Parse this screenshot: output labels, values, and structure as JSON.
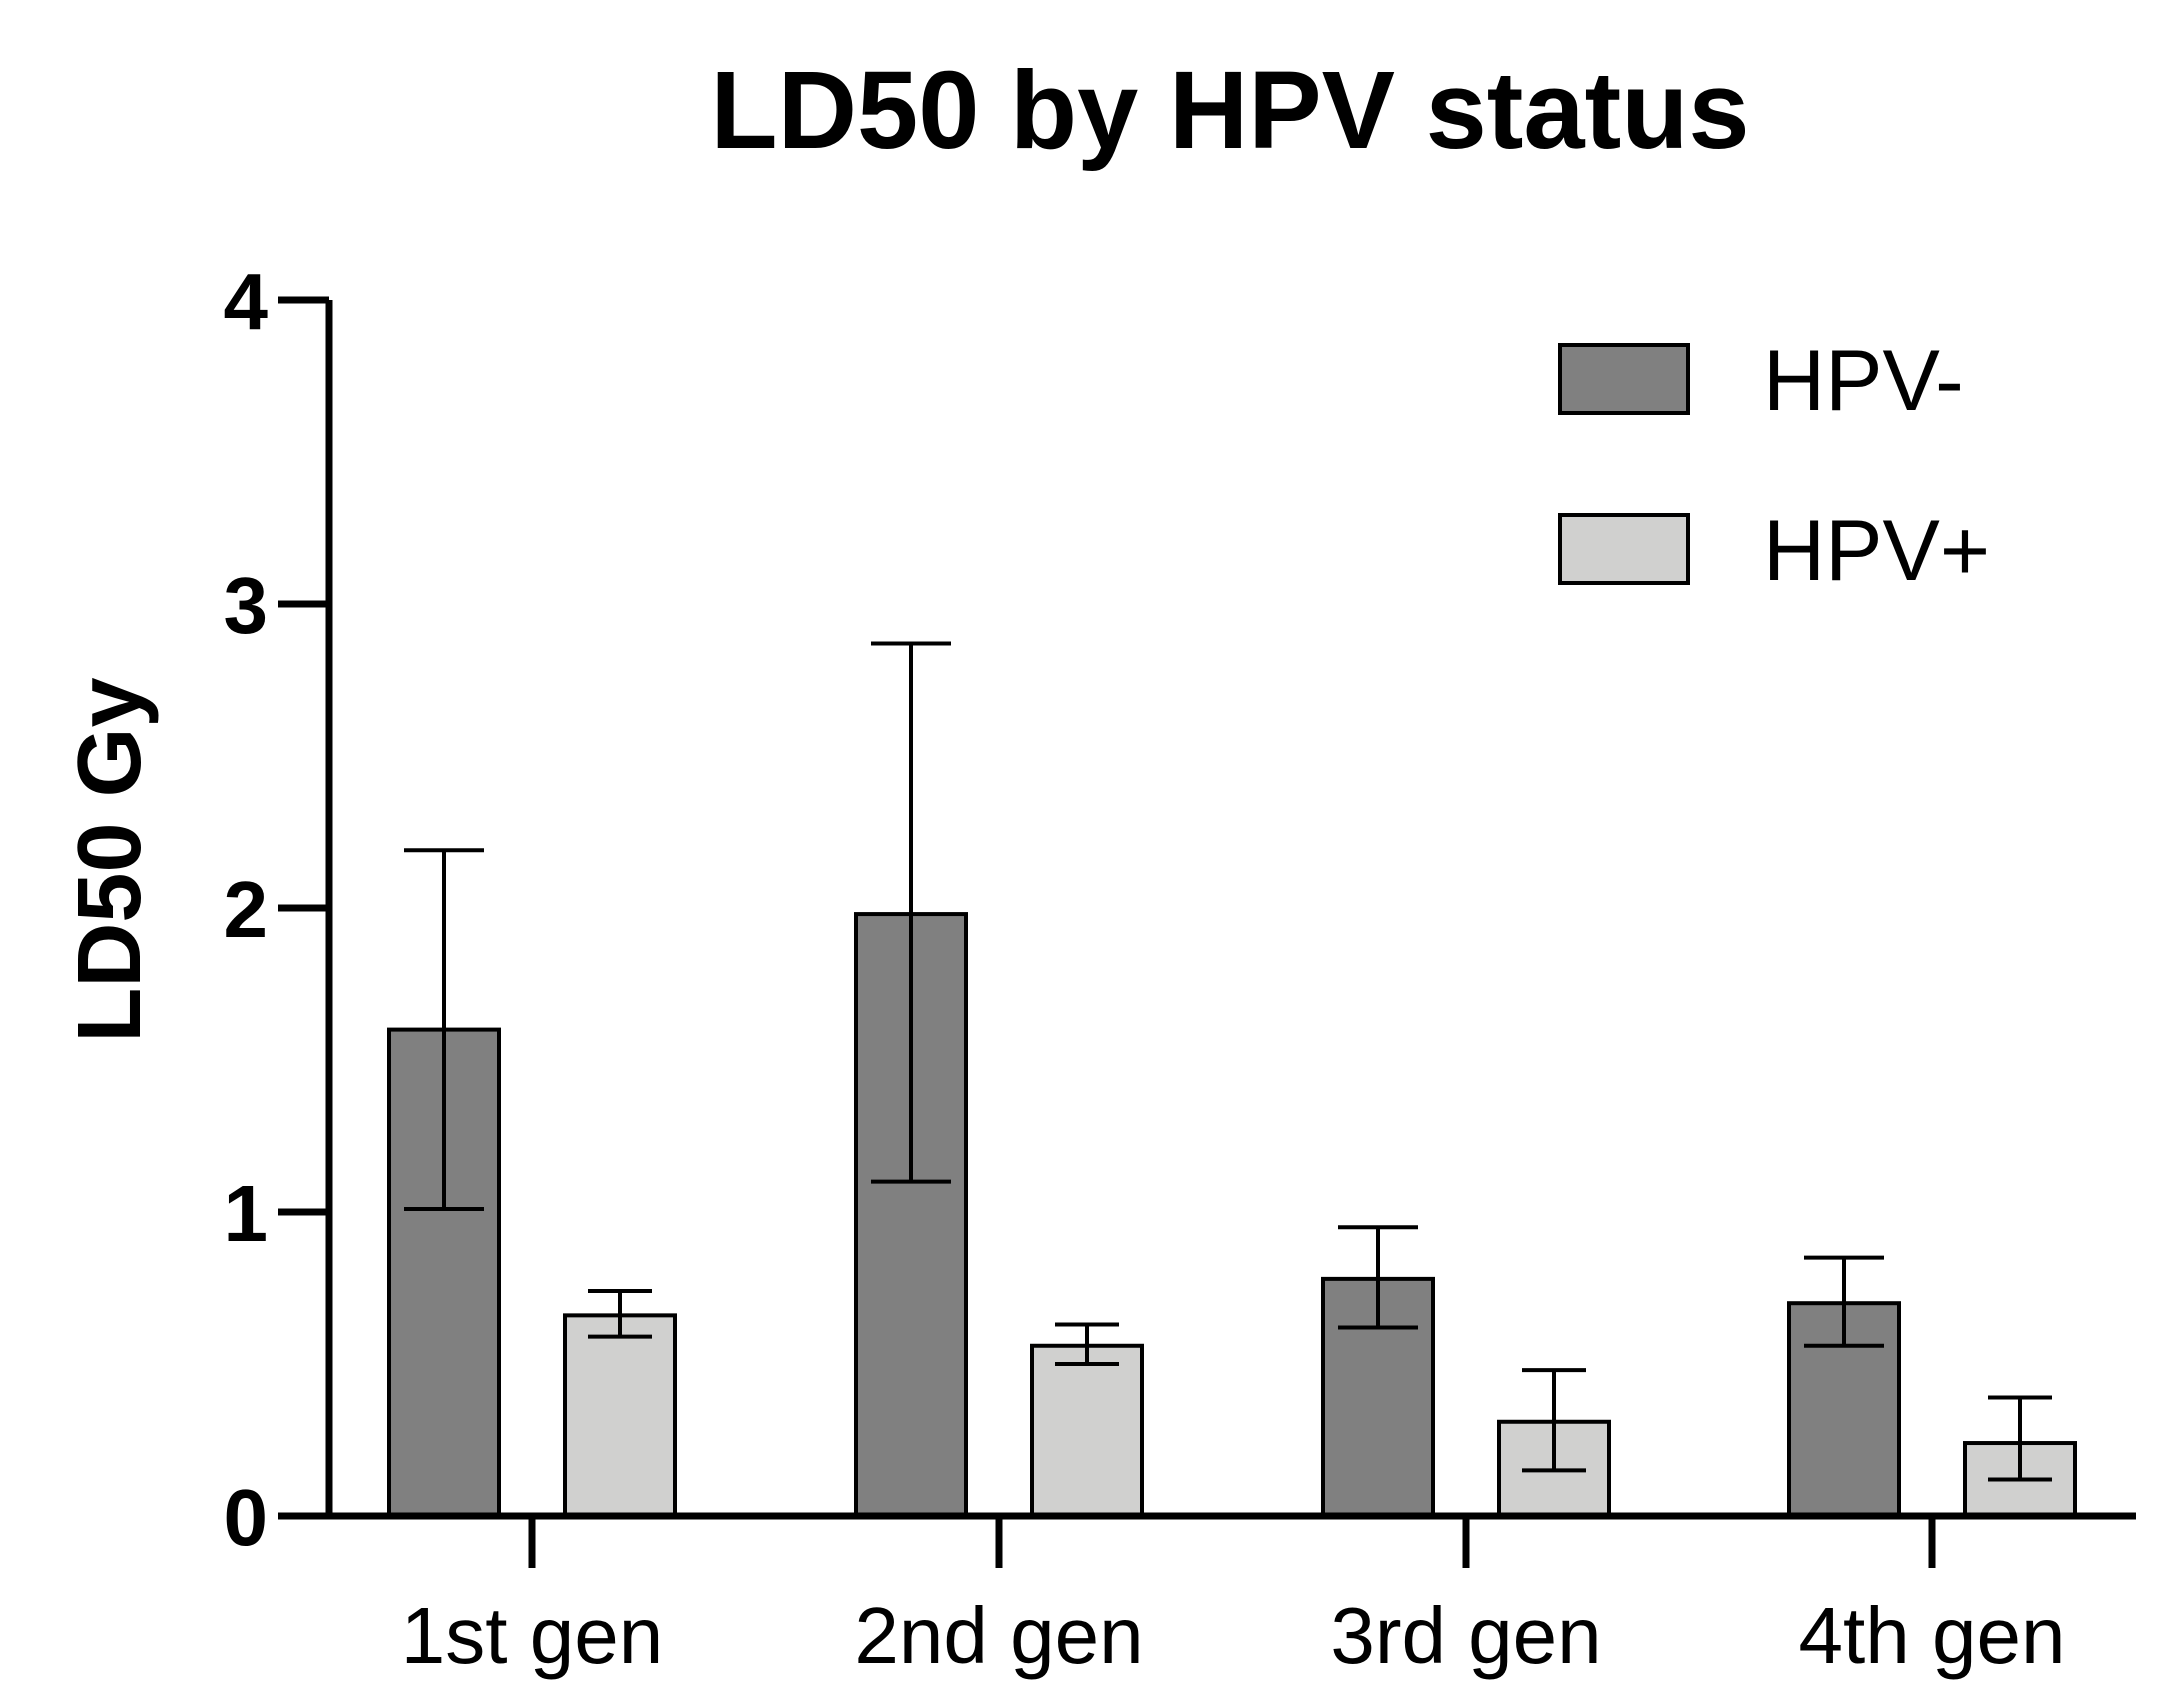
{
  "chart_data": {
    "type": "bar",
    "title": "LD50 by HPV status",
    "xlabel": "",
    "ylabel": "LD50 Gy",
    "ylim": [
      0,
      4
    ],
    "yticks": [
      "0",
      "1",
      "2",
      "3",
      "4"
    ],
    "categories": [
      "1st gen",
      "2nd gen",
      "3rd gen",
      "4th gen"
    ],
    "series": [
      {
        "name": "HPV-",
        "color": "#808080",
        "values": [
          1.6,
          1.98,
          0.78,
          0.7
        ],
        "err_low": [
          1.01,
          1.1,
          0.62,
          0.56
        ],
        "err_high": [
          2.19,
          2.87,
          0.95,
          0.85
        ]
      },
      {
        "name": "HPV+",
        "color": "#d0d0cf",
        "values": [
          0.66,
          0.56,
          0.31,
          0.24
        ],
        "err_low": [
          0.59,
          0.5,
          0.15,
          0.12
        ],
        "err_high": [
          0.74,
          0.63,
          0.48,
          0.39
        ]
      }
    ],
    "grid": false,
    "legend": "top-right"
  }
}
